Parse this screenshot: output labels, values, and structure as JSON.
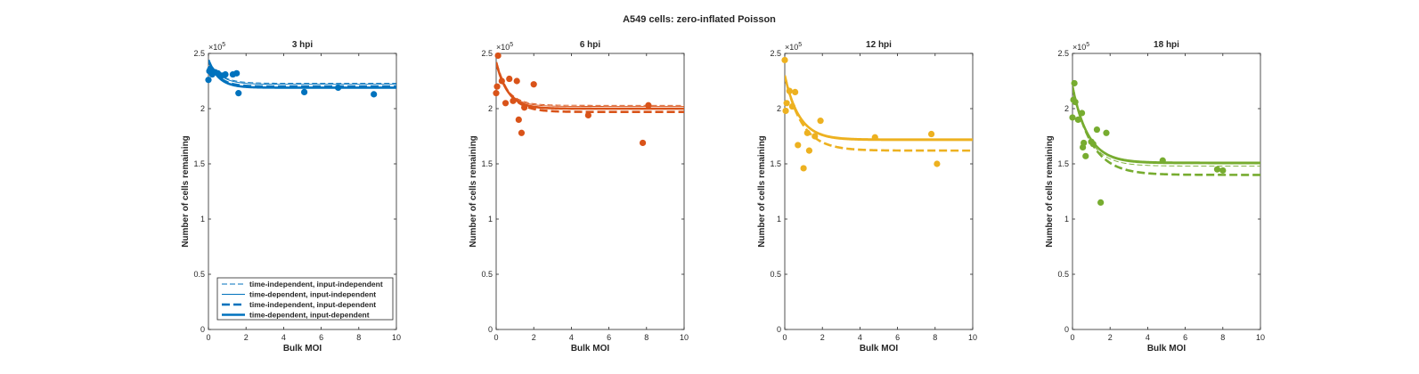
{
  "figure_title": "A549 cells: zero-inflated Poisson",
  "chart_data": [
    {
      "type": "scatter",
      "title": "3 hpi",
      "xlabel": "Bulk MOI",
      "ylabel": "Number of cells remaining",
      "xlim": [
        0,
        10
      ],
      "ylim": [
        0,
        2.5
      ],
      "y_multiplier": "×10^5",
      "xticks": [
        "0",
        "2",
        "4",
        "6",
        "8",
        "10"
      ],
      "yticks": [
        "0",
        "0.5",
        "1",
        "1.5",
        "2",
        "2.5"
      ],
      "color": "#0072BD",
      "points": [
        [
          0.0,
          2.26
        ],
        [
          0.05,
          2.34
        ],
        [
          0.1,
          2.36
        ],
        [
          0.2,
          2.31
        ],
        [
          0.35,
          2.33
        ],
        [
          0.5,
          2.32
        ],
        [
          0.7,
          2.3
        ],
        [
          0.9,
          2.31
        ],
        [
          1.3,
          2.31
        ],
        [
          1.5,
          2.32
        ],
        [
          1.6,
          2.14
        ],
        [
          5.1,
          2.15
        ],
        [
          6.9,
          2.19
        ],
        [
          8.8,
          2.13
        ]
      ],
      "series": [
        {
          "name": "time-independent, input-independent",
          "style": "thin-dashed",
          "y0": 2.44,
          "yinf": 2.23,
          "k": 1.6
        },
        {
          "name": "time-dependent, input-independent",
          "style": "thin-solid",
          "y0": 2.44,
          "yinf": 2.22,
          "k": 1.6
        },
        {
          "name": "time-independent, input-dependent",
          "style": "thick-dashed",
          "y0": 2.44,
          "yinf": 2.2,
          "k": 1.8
        },
        {
          "name": "time-dependent, input-dependent",
          "style": "thick-solid",
          "y0": 2.44,
          "yinf": 2.19,
          "k": 1.8
        }
      ],
      "legend": "lower-right"
    },
    {
      "type": "scatter",
      "title": "6 hpi",
      "xlabel": "Bulk MOI",
      "ylabel": "Number of cells remaining",
      "xlim": [
        0,
        10
      ],
      "ylim": [
        0,
        2.5
      ],
      "y_multiplier": "×10^5",
      "xticks": [
        "0",
        "2",
        "4",
        "6",
        "8",
        "10"
      ],
      "yticks": [
        "0",
        "0.5",
        "1",
        "1.5",
        "2",
        "2.5"
      ],
      "color": "#D95319",
      "points": [
        [
          0.0,
          2.14
        ],
        [
          0.05,
          2.2
        ],
        [
          0.1,
          2.48
        ],
        [
          0.3,
          2.25
        ],
        [
          0.5,
          2.05
        ],
        [
          0.7,
          2.27
        ],
        [
          0.9,
          2.07
        ],
        [
          1.1,
          2.25
        ],
        [
          1.2,
          1.9
        ],
        [
          1.35,
          1.78
        ],
        [
          1.5,
          2.01
        ],
        [
          2.0,
          2.22
        ],
        [
          4.9,
          1.94
        ],
        [
          7.8,
          1.69
        ],
        [
          8.1,
          2.03
        ]
      ],
      "series": [
        {
          "name": "time-independent, input-independent",
          "style": "thin-dashed",
          "y0": 2.4,
          "yinf": 2.03,
          "k": 1.6
        },
        {
          "name": "time-dependent, input-independent",
          "style": "thin-solid",
          "y0": 2.4,
          "yinf": 2.02,
          "k": 1.6
        },
        {
          "name": "time-independent, input-dependent",
          "style": "thick-dashed",
          "y0": 2.42,
          "yinf": 1.97,
          "k": 1.4
        },
        {
          "name": "time-dependent, input-dependent",
          "style": "thick-solid",
          "y0": 2.42,
          "yinf": 2.0,
          "k": 1.6
        }
      ]
    },
    {
      "type": "scatter",
      "title": "12 hpi",
      "xlabel": "Bulk MOI",
      "ylabel": "Number of cells remaining",
      "xlim": [
        0,
        10
      ],
      "ylim": [
        0,
        2.5
      ],
      "y_multiplier": "×10^5",
      "xticks": [
        "0",
        "2",
        "4",
        "6",
        "8",
        "10"
      ],
      "yticks": [
        "0",
        "0.5",
        "1",
        "1.5",
        "2",
        "2.5"
      ],
      "color": "#EDB120",
      "points": [
        [
          0.0,
          2.44
        ],
        [
          0.05,
          1.98
        ],
        [
          0.1,
          2.05
        ],
        [
          0.25,
          2.16
        ],
        [
          0.4,
          2.02
        ],
        [
          0.55,
          2.15
        ],
        [
          0.7,
          1.67
        ],
        [
          1.0,
          1.46
        ],
        [
          1.2,
          1.78
        ],
        [
          1.3,
          1.62
        ],
        [
          1.6,
          1.75
        ],
        [
          1.9,
          1.89
        ],
        [
          4.8,
          1.74
        ],
        [
          7.8,
          1.77
        ],
        [
          8.1,
          1.5
        ]
      ],
      "series": [
        {
          "name": "time-independent, input-independent",
          "style": "thin-dashed",
          "y0": 2.3,
          "yinf": 1.72,
          "k": 1.3
        },
        {
          "name": "time-dependent, input-independent",
          "style": "thin-solid",
          "y0": 2.3,
          "yinf": 1.71,
          "k": 1.3
        },
        {
          "name": "time-independent, input-dependent",
          "style": "thick-dashed",
          "y0": 2.3,
          "yinf": 1.62,
          "k": 1.1
        },
        {
          "name": "time-dependent, input-dependent",
          "style": "thick-solid",
          "y0": 2.3,
          "yinf": 1.72,
          "k": 1.3
        }
      ]
    },
    {
      "type": "scatter",
      "title": "18 hpi",
      "xlabel": "Bulk MOI",
      "ylabel": "Number of cells remaining",
      "xlim": [
        0,
        10
      ],
      "ylim": [
        0,
        2.5
      ],
      "y_multiplier": "×10^5",
      "xticks": [
        "0",
        "2",
        "4",
        "6",
        "8",
        "10"
      ],
      "yticks": [
        "0",
        "0.5",
        "1",
        "1.5",
        "2",
        "2.5"
      ],
      "color": "#77AC30",
      "points": [
        [
          0.0,
          1.92
        ],
        [
          0.05,
          2.08
        ],
        [
          0.1,
          2.23
        ],
        [
          0.15,
          2.06
        ],
        [
          0.3,
          1.9
        ],
        [
          0.5,
          1.96
        ],
        [
          0.55,
          1.65
        ],
        [
          0.6,
          1.69
        ],
        [
          0.7,
          1.57
        ],
        [
          1.0,
          1.7
        ],
        [
          1.1,
          1.68
        ],
        [
          1.3,
          1.81
        ],
        [
          1.5,
          1.15
        ],
        [
          1.8,
          1.78
        ],
        [
          4.8,
          1.53
        ],
        [
          7.7,
          1.45
        ],
        [
          8.0,
          1.44
        ]
      ],
      "series": [
        {
          "name": "time-independent, input-independent",
          "style": "thin-dashed",
          "y0": 2.2,
          "yinf": 1.48,
          "k": 1.2
        },
        {
          "name": "time-dependent, input-independent",
          "style": "thin-solid",
          "y0": 2.2,
          "yinf": 1.5,
          "k": 1.2
        },
        {
          "name": "time-independent, input-dependent",
          "style": "thick-dashed",
          "y0": 2.2,
          "yinf": 1.4,
          "k": 1.0
        },
        {
          "name": "time-dependent, input-dependent",
          "style": "thick-solid",
          "y0": 2.2,
          "yinf": 1.51,
          "k": 1.2
        }
      ]
    }
  ]
}
